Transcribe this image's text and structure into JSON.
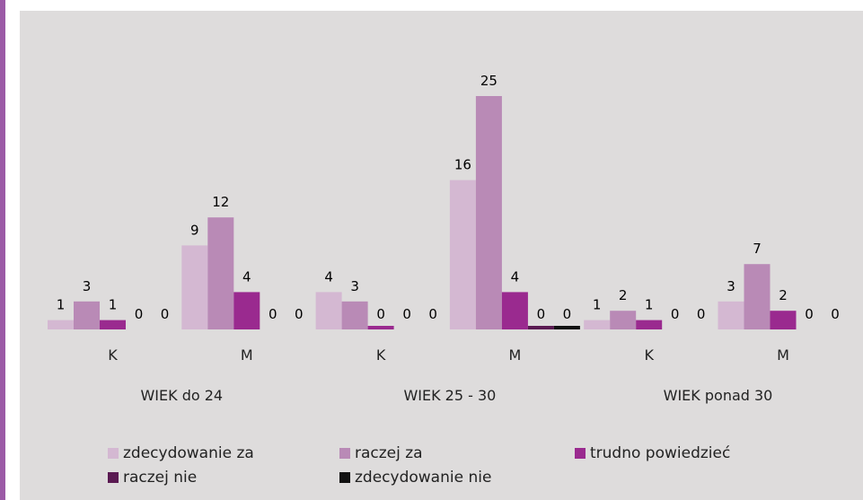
{
  "chart_data": {
    "type": "bar",
    "groups": [
      "WIEK do 24",
      "WIEK 25 - 30",
      "WIEK ponad 30"
    ],
    "subcategories": [
      "K",
      "M"
    ],
    "categories": [
      "K",
      "M",
      "K",
      "M",
      "K",
      "M"
    ],
    "series": [
      {
        "name": "zdecydowanie za",
        "color": "#d4b8d2",
        "values": [
          1,
          9,
          4,
          16,
          1,
          3
        ]
      },
      {
        "name": "raczej za",
        "color": "#b98ab6",
        "values": [
          3,
          12,
          3,
          25,
          2,
          7
        ]
      },
      {
        "name": "trudno powiedzieć",
        "color": "#9a2a8f",
        "values": [
          1,
          4,
          0,
          4,
          1,
          2
        ]
      },
      {
        "name": "raczej nie",
        "color": "#5a1a52",
        "values": [
          0,
          0,
          0,
          0,
          0,
          0
        ]
      },
      {
        "name": "zdecydowanie nie",
        "color": "#111111",
        "values": [
          0,
          0,
          0,
          0,
          0,
          0
        ]
      }
    ],
    "ylim": [
      0,
      25
    ],
    "grid": false,
    "legend_position": "bottom"
  }
}
